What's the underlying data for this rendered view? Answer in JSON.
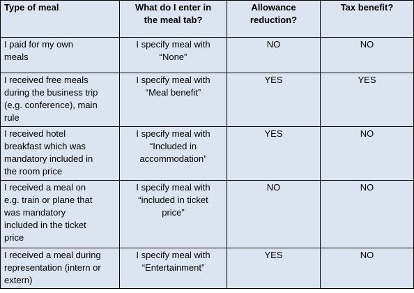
{
  "table": {
    "headers": [
      [
        "Type of meal"
      ],
      [
        "What do I enter in",
        "the meal tab?"
      ],
      [
        "Allowance",
        "reduction?"
      ],
      [
        "Tax benefit?"
      ]
    ],
    "rows": [
      {
        "type": [
          "I paid for my own",
          "meals"
        ],
        "entry": [
          "I specify meal with",
          "“None”"
        ],
        "reduction": "NO",
        "tax": "NO"
      },
      {
        "type": [
          "I received free meals",
          "during the business trip",
          "(e.g. conference), main",
          "rule"
        ],
        "entry": [
          "I specify meal with",
          "“Meal benefit”"
        ],
        "reduction": "YES",
        "tax": "YES"
      },
      {
        "type": [
          "I received hotel",
          "breakfast which was",
          "mandatory included in",
          "the room price"
        ],
        "entry": [
          "I specify meal with",
          "“Included in",
          "accommodation”"
        ],
        "reduction": "YES",
        "tax": "NO"
      },
      {
        "type": [
          "I received a meal on",
          "e.g. train or plane that",
          "was mandatory",
          "included in the ticket",
          "price"
        ],
        "entry": [
          "I specify meal with",
          "“included in ticket",
          "price”"
        ],
        "reduction": "NO",
        "tax": "NO"
      },
      {
        "type": [
          "I received a meal during",
          "representation (intern or",
          "extern)"
        ],
        "entry": [
          "I specify meal with",
          "“Entertainment”"
        ],
        "reduction": "YES",
        "tax": "NO"
      }
    ]
  },
  "colors": {
    "cell_background": "#dbe5f1",
    "border": "#000000"
  }
}
